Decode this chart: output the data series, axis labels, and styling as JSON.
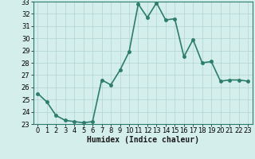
{
  "x": [
    0,
    1,
    2,
    3,
    4,
    5,
    6,
    7,
    8,
    9,
    10,
    11,
    12,
    13,
    14,
    15,
    16,
    17,
    18,
    19,
    20,
    21,
    22,
    23
  ],
  "y": [
    25.5,
    24.8,
    23.7,
    23.3,
    23.2,
    23.1,
    23.2,
    26.6,
    26.2,
    27.4,
    28.9,
    32.8,
    31.7,
    32.9,
    31.5,
    31.6,
    28.5,
    29.9,
    28.0,
    28.1,
    26.5,
    26.6,
    26.6,
    26.5
  ],
  "xlim": [
    -0.5,
    23.5
  ],
  "ylim": [
    23,
    33
  ],
  "yticks": [
    23,
    24,
    25,
    26,
    27,
    28,
    29,
    30,
    31,
    32,
    33
  ],
  "xticks": [
    0,
    1,
    2,
    3,
    4,
    5,
    6,
    7,
    8,
    9,
    10,
    11,
    12,
    13,
    14,
    15,
    16,
    17,
    18,
    19,
    20,
    21,
    22,
    23
  ],
  "xlabel": "Humidex (Indice chaleur)",
  "line_color": "#2d7d6d",
  "marker_color": "#2d7d6d",
  "bg_color": "#d4eeec",
  "grid_color": "#b0d4d0",
  "xlabel_fontsize": 7,
  "tick_fontsize": 6,
  "line_width": 1.2,
  "marker_size": 2.5
}
